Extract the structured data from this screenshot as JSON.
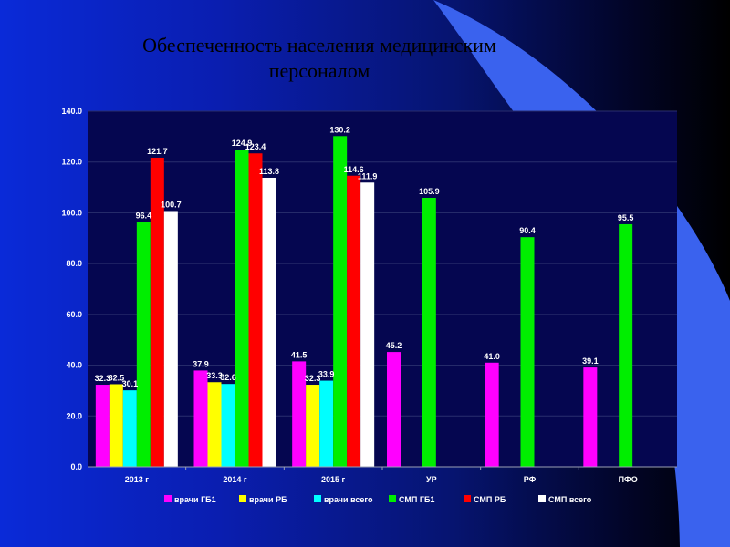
{
  "slide": {
    "title_lines": [
      "Обеспеченность населения медицинским",
      "персоналом"
    ]
  },
  "colors": {
    "background_start": "#0a2ad8",
    "background_end": "#000000",
    "title": "#000000",
    "plot_background": "#050650",
    "axis": "#9aa0b4",
    "text": "#ffffff",
    "swoosh": "#3a62ee"
  },
  "chart_data": {
    "type": "bar",
    "title": "",
    "xlabel": "",
    "ylabel": "",
    "ylim": [
      0,
      140
    ],
    "yticks": [
      0,
      20,
      40,
      60,
      80,
      100,
      120,
      140
    ],
    "ytick_labels": [
      "0.0",
      "20.0",
      "40.0",
      "60.0",
      "80.0",
      "100.0",
      "120.0",
      "140.0"
    ],
    "grid": true,
    "legend_position": "bottom",
    "categories": [
      "2013 г",
      "2014 г",
      "2015 г",
      "УР",
      "РФ",
      "ПФО"
    ],
    "series": [
      {
        "name": "врачи ГБ1",
        "color": "#ff00ff",
        "values": [
          32.3,
          37.9,
          41.5,
          45.2,
          41.0,
          39.1
        ],
        "labels": [
          "32.3",
          "37.9",
          "41.5",
          "45.2",
          "41.0",
          "39.1"
        ]
      },
      {
        "name": "врачи РБ",
        "color": "#ffff00",
        "values": [
          32.5,
          33.3,
          32.3,
          null,
          null,
          null
        ],
        "labels": [
          "32.5",
          "33.3",
          "32.3",
          null,
          null,
          null
        ]
      },
      {
        "name": "врачи всего",
        "color": "#00ffff",
        "values": [
          30.1,
          32.6,
          33.9,
          null,
          null,
          null
        ],
        "labels": [
          "30.1",
          "32.6",
          "33.9",
          null,
          null,
          null
        ]
      },
      {
        "name": "СМП ГБ1",
        "color": "#00ee00",
        "values": [
          96.4,
          124.9,
          130.2,
          105.9,
          90.4,
          95.5
        ],
        "labels": [
          "96.4",
          "124.9",
          "130.2",
          "105.9",
          "90.4",
          "95.5"
        ]
      },
      {
        "name": "СМП РБ",
        "color": "#ff0000",
        "values": [
          121.7,
          123.4,
          114.6,
          null,
          null,
          null
        ],
        "labels": [
          "121.7",
          "123.4",
          "114.6",
          null,
          null,
          null
        ]
      },
      {
        "name": "СМП всего",
        "color": "#ffffff",
        "values": [
          100.7,
          113.8,
          111.9,
          null,
          null,
          null
        ],
        "labels": [
          "100.7",
          "113.8",
          "111.9",
          null,
          null,
          null
        ]
      }
    ]
  }
}
